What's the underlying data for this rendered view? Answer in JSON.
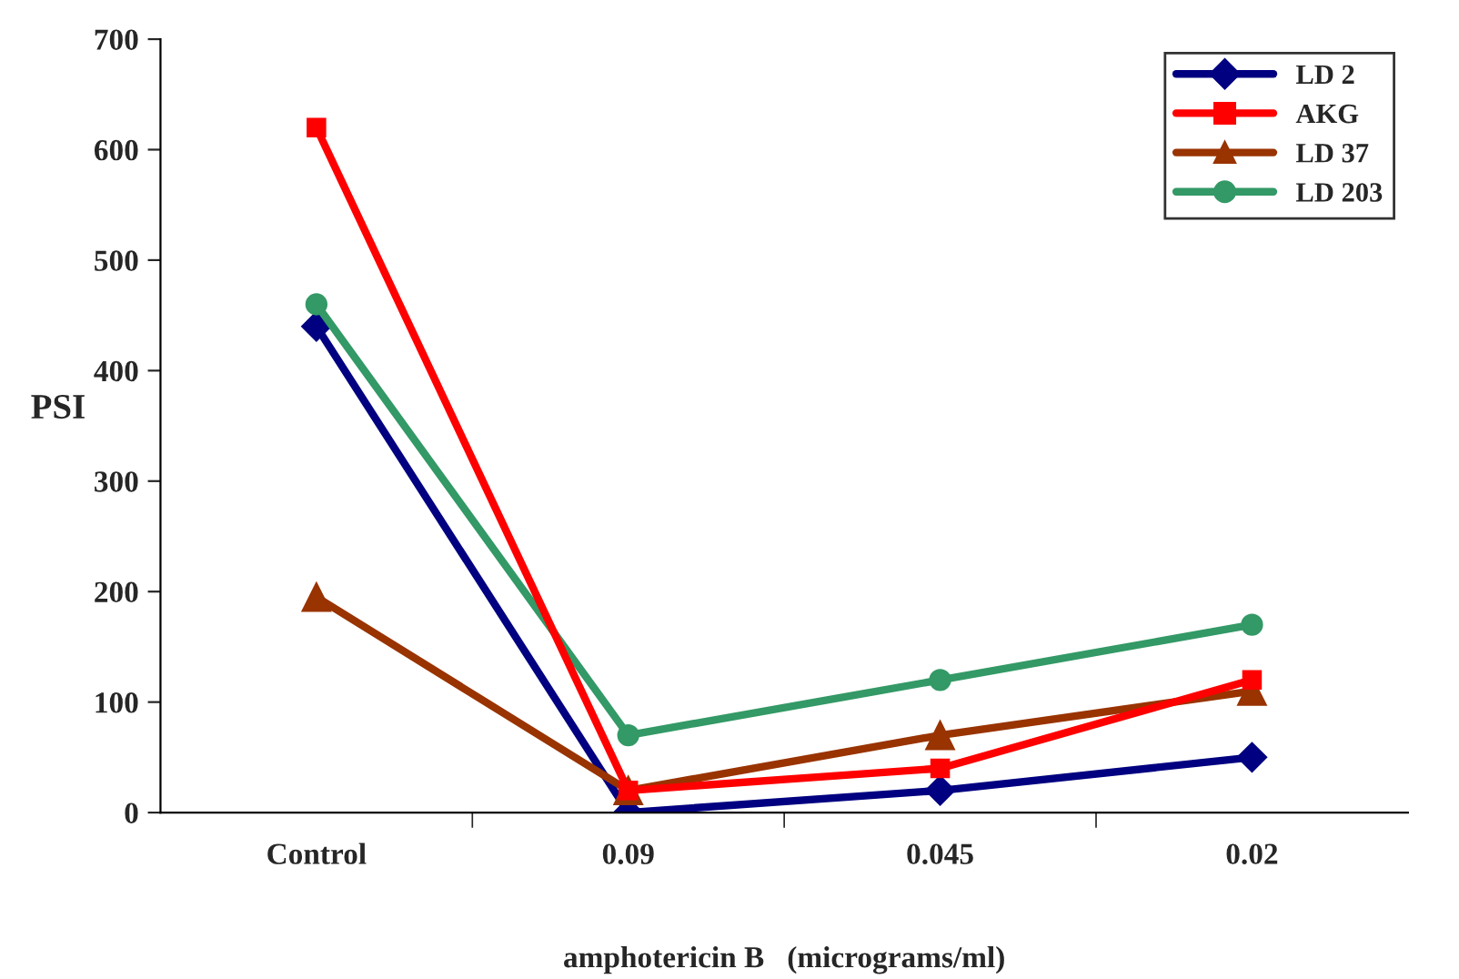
{
  "chart_data": {
    "type": "line",
    "xlabel": "amphotericin B   (micrograms/ml)",
    "ylabel": "PSI",
    "categories": [
      "Control",
      "0.09",
      "0.045",
      "0.02"
    ],
    "series": [
      {
        "name": "LD 2",
        "color": "#000080",
        "marker": "diamond",
        "values": [
          440,
          0,
          20,
          50
        ]
      },
      {
        "name": "AKG",
        "color": "#ff0000",
        "marker": "square",
        "values": [
          620,
          20,
          40,
          120
        ]
      },
      {
        "name": "LD 37",
        "color": "#993300",
        "marker": "triangle",
        "values": [
          195,
          20,
          70,
          110
        ]
      },
      {
        "name": "LD 203",
        "color": "#339966",
        "marker": "circle",
        "values": [
          460,
          70,
          120,
          170
        ]
      }
    ],
    "ylim": [
      0,
      700
    ],
    "yticks": [
      0,
      100,
      200,
      300,
      400,
      500,
      600,
      700
    ],
    "grid": false,
    "legend": "top right",
    "line_style": "solid"
  }
}
